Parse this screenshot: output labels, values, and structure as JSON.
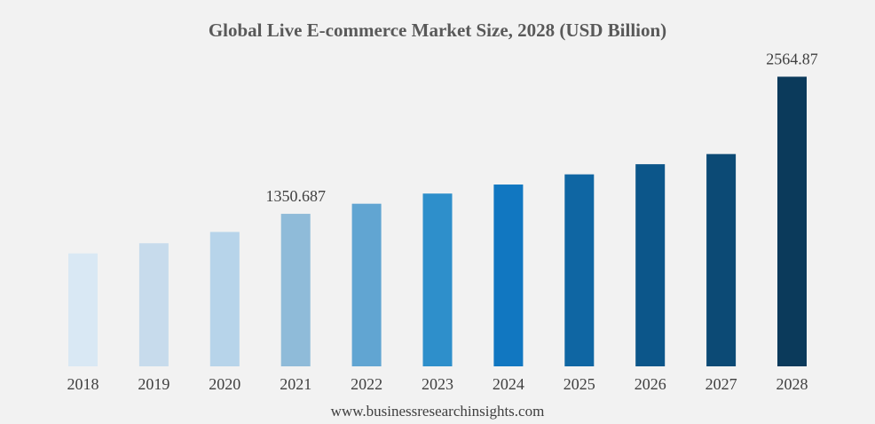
{
  "chart_data": {
    "type": "bar",
    "title": "Global Live E-commerce Market Size, 2028 (USD Billion)",
    "categories": [
      "2018",
      "2019",
      "2020",
      "2021",
      "2022",
      "2023",
      "2024",
      "2025",
      "2026",
      "2027",
      "2028"
    ],
    "series": [
      {
        "values": [
          1000,
          1090,
          1190,
          1350.687,
          1440,
          1530,
          1610,
          1700,
          1790,
          1880,
          2564.87
        ],
        "colors": [
          "#d9e8f4",
          "#c7dbec",
          "#b7d4ea",
          "#8fbbd9",
          "#61a5d2",
          "#2e8fcb",
          "#1177c1",
          "#0f66a3",
          "#0c568a",
          "#0c4a75",
          "#0b3a5b"
        ]
      }
    ],
    "data_labels": [
      {
        "category": "2021",
        "text": "1350.687"
      },
      {
        "category": "2028",
        "text": "2564.87"
      }
    ],
    "ylim": [
      0,
      2600
    ],
    "grid": false,
    "legend": "none",
    "xlabel": "",
    "ylabel": ""
  },
  "footer": {
    "source": "www.businessresearchinsights.com"
  }
}
